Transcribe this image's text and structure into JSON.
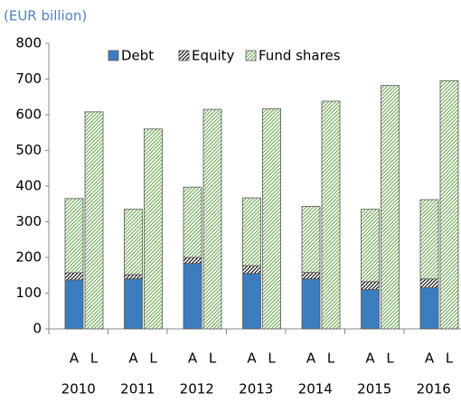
{
  "chart_data": {
    "type": "grouped-stacked-bar",
    "subtitle": "(EUR billion)",
    "categories": [
      "2010",
      "2011",
      "2012",
      "2013",
      "2014",
      "2015",
      "2016"
    ],
    "groups": [
      "A",
      "L"
    ],
    "series": [
      {
        "name": "Debt",
        "color": "#3b7dbf",
        "hatch": false,
        "values": [
          [
            137,
            null
          ],
          [
            140,
            null
          ],
          [
            183,
            null
          ],
          [
            155,
            null
          ],
          [
            140,
            null
          ],
          [
            110,
            null
          ],
          [
            115,
            null
          ]
        ]
      },
      {
        "name": "Equity",
        "color": "#000000",
        "hatch": true,
        "values": [
          [
            20,
            null
          ],
          [
            12,
            null
          ],
          [
            17,
            null
          ],
          [
            22,
            null
          ],
          [
            18,
            null
          ],
          [
            22,
            null
          ],
          [
            25,
            null
          ]
        ]
      },
      {
        "name": "Fund shares",
        "color": "#6aa84f",
        "hatch": true,
        "values": [
          [
            208,
            608
          ],
          [
            183,
            560
          ],
          [
            197,
            615
          ],
          [
            190,
            617
          ],
          [
            185,
            638
          ],
          [
            203,
            682
          ],
          [
            222,
            695
          ]
        ]
      }
    ],
    "ylim": [
      0,
      800
    ],
    "yticks": [
      0,
      100,
      200,
      300,
      400,
      500,
      600,
      700,
      800
    ],
    "legend": "top"
  }
}
